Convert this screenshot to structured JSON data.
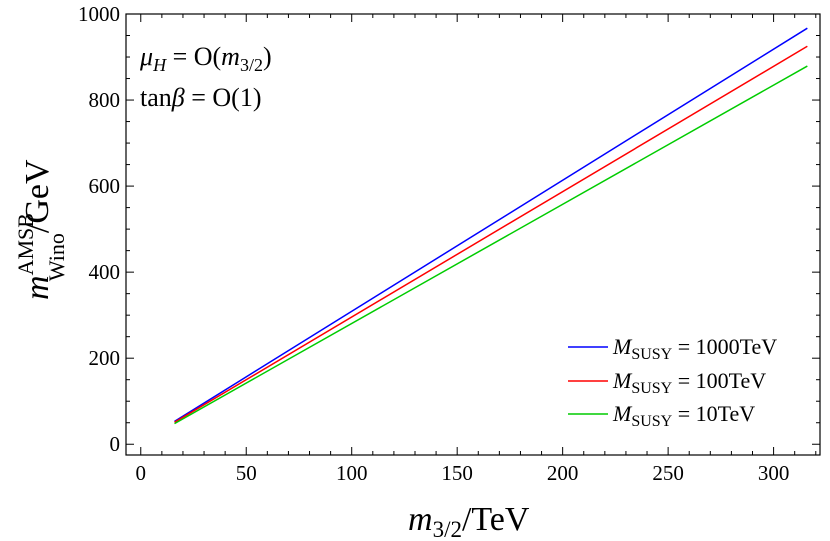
{
  "chart_data": {
    "type": "line",
    "xlabel": {
      "var": "m",
      "sub": "3/2",
      "unit": "/TeV"
    },
    "ylabel": {
      "var": "m",
      "sup": "AMSB",
      "sub": "Wino",
      "unit": "/GeV"
    },
    "xlim": [
      -7,
      322
    ],
    "ylim": [
      -25,
      1000
    ],
    "xticks": [
      0,
      50,
      100,
      150,
      200,
      250,
      300
    ],
    "yticks": [
      0,
      200,
      400,
      600,
      800,
      1000
    ],
    "annotations": [
      {
        "var": "μ",
        "sub": "H",
        "rest1": " = O(",
        "arg": "m",
        "argsub": "3/2",
        "rest2": ")"
      },
      {
        "pre": "tan",
        "var": "β",
        "rest": " = O(1)"
      }
    ],
    "legend_position": "bottom-right",
    "series": [
      {
        "name": "M_SUSY = 1000TeV",
        "label_var": "M",
        "label_sub": "SUSY",
        "label_rest": " = 1000TeV",
        "color": "#0000ff",
        "x": [
          16,
          316
        ],
        "values": [
          53,
          967
        ]
      },
      {
        "name": "M_SUSY = 100TeV",
        "label_var": "M",
        "label_sub": "SUSY",
        "label_rest": " = 100TeV",
        "color": "#ff0000",
        "x": [
          16,
          316
        ],
        "values": [
          51,
          925
        ]
      },
      {
        "name": "M_SUSY = 10TeV",
        "label_var": "M",
        "label_sub": "SUSY",
        "label_rest": " = 10TeV",
        "color": "#00cc00",
        "x": [
          16,
          316
        ],
        "values": [
          48,
          879
        ]
      }
    ]
  }
}
